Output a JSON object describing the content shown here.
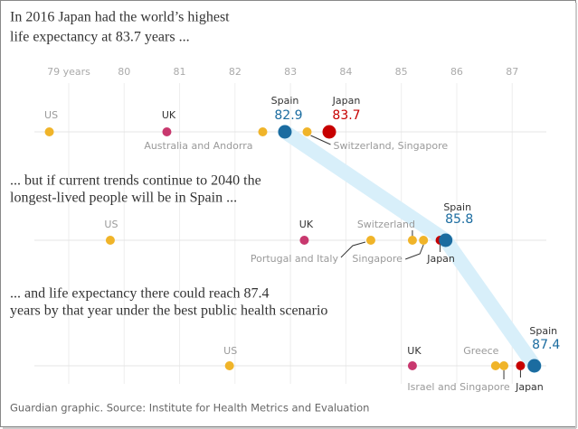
{
  "chart_data": {
    "type": "dot",
    "xlim": [
      78.5,
      87.6
    ],
    "xticks": [
      {
        "value": 79,
        "label": "79 years"
      },
      80,
      81,
      82,
      83,
      84,
      85,
      86,
      87
    ],
    "grid": true,
    "track": {
      "point_name": "Spain",
      "color": "#d8effa"
    },
    "source": "Guardian graphic. Source: Institute for Health Metrics and Evaluation",
    "panels": [
      {
        "heading": [
          "In 2016 Japan had the world’s highest",
          "life expectancy at 83.7 years ..."
        ],
        "points": [
          {
            "name": "US",
            "value": 78.65,
            "color": "#f0b429",
            "label_color": "#9a9a9a"
          },
          {
            "name": "UK",
            "value": 80.77,
            "color": "#c8386e",
            "label_color": "#333333"
          },
          {
            "name": "Australia and Andorra",
            "value": 82.5,
            "color": "#f0b429",
            "label_color": "#9a9a9a"
          },
          {
            "name": "Spain",
            "value": 82.9,
            "color": "#1b6ca0",
            "label_color": "#333333",
            "size": "large",
            "show_value": true
          },
          {
            "name": "Switzerland, Singapore",
            "value": 83.3,
            "color": "#f0b429",
            "label_color": "#9a9a9a"
          },
          {
            "name": "Japan",
            "value": 83.7,
            "color": "#c70000",
            "label_color": "#333333",
            "size": "large",
            "show_value": true
          }
        ]
      },
      {
        "heading": [
          "... but if current trends continue to 2040 the",
          "longest-lived people will be in Spain ..."
        ],
        "points": [
          {
            "name": "US",
            "value": 79.75,
            "color": "#f0b429",
            "label_color": "#9a9a9a"
          },
          {
            "name": "UK",
            "value": 83.25,
            "color": "#c8386e",
            "label_color": "#333333"
          },
          {
            "name": "Portugal and Italy",
            "value": 84.45,
            "color": "#f0b429",
            "label_color": "#9a9a9a"
          },
          {
            "name": "Switzerland",
            "value": 85.2,
            "color": "#f0b429",
            "label_color": "#9a9a9a"
          },
          {
            "name": "Singapore",
            "value": 85.4,
            "color": "#f0b429",
            "label_color": "#9a9a9a"
          },
          {
            "name": "Japan",
            "value": 85.7,
            "color": "#c70000",
            "label_color": "#333333"
          },
          {
            "name": "Spain",
            "value": 85.8,
            "color": "#1b6ca0",
            "label_color": "#333333",
            "size": "large",
            "show_value": true
          }
        ]
      },
      {
        "heading": [
          "... and life expectancy there could reach 87.4",
          "years by that year under the best public health scenario"
        ],
        "points": [
          {
            "name": "US",
            "value": 81.9,
            "color": "#f0b429",
            "label_color": "#9a9a9a"
          },
          {
            "name": "UK",
            "value": 85.2,
            "color": "#c8386e",
            "label_color": "#333333"
          },
          {
            "name": "Greece",
            "value": 86.7,
            "color": "#f0b429",
            "label_color": "#9a9a9a"
          },
          {
            "name": "Israel and Singapore",
            "value": 86.85,
            "color": "#f0b429",
            "label_color": "#9a9a9a"
          },
          {
            "name": "Japan",
            "value": 87.15,
            "color": "#c70000",
            "label_color": "#333333"
          },
          {
            "name": "Spain",
            "value": 87.4,
            "color": "#1b6ca0",
            "label_color": "#333333",
            "size": "large",
            "show_value": true
          }
        ]
      }
    ]
  }
}
